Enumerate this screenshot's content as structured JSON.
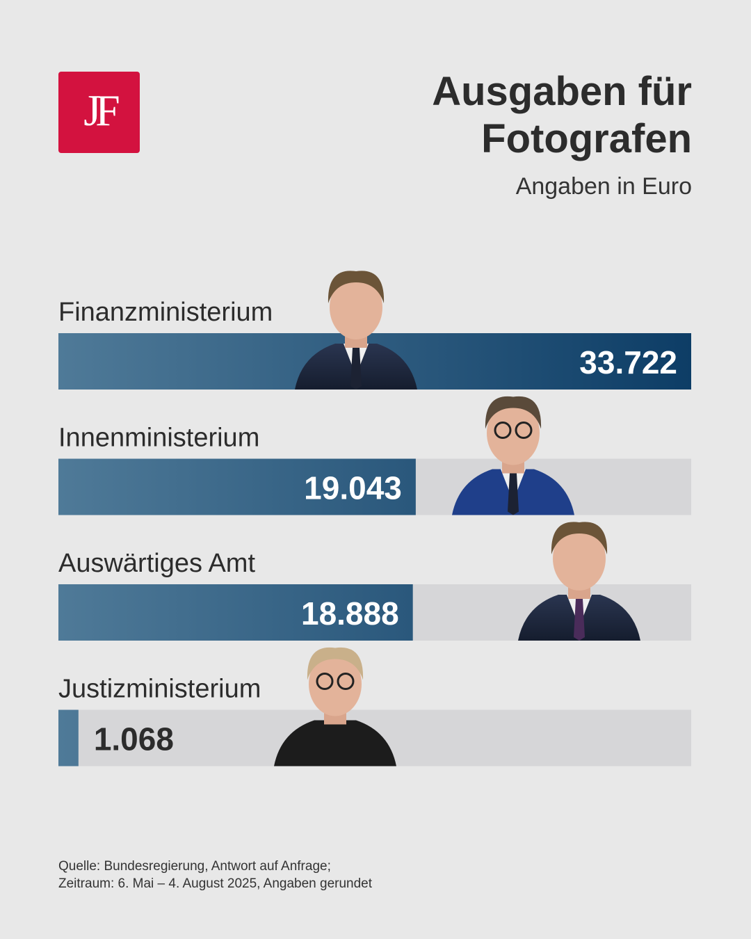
{
  "logo": {
    "text": "JF"
  },
  "header": {
    "title_line1": "Ausgaben für",
    "title_line2": "Fotografen",
    "subtitle": "Angaben in Euro"
  },
  "colors": {
    "background": "#e8e8e8",
    "track": "#d6d6d8",
    "bar_light": "#4f7a98",
    "bar_dark": "#0d3d66",
    "logo": "#d3123f",
    "text": "#2c2c2c"
  },
  "chart_data": {
    "type": "bar",
    "orientation": "horizontal",
    "categories": [
      "Finanzministerium",
      "Innenministerium",
      "Auswärtiges Amt",
      "Justizministerium"
    ],
    "values": [
      33722,
      19043,
      18888,
      1068
    ],
    "value_labels": [
      "33.722",
      "19.043",
      "18.888",
      "1.068"
    ],
    "xlim": [
      0,
      33722
    ],
    "grid": false,
    "legend": "none",
    "portraits": [
      "man-dark-suit-portrait",
      "man-glasses-blue-suit-portrait",
      "older-man-suit-portrait",
      "woman-glasses-black-blouse-portrait"
    ]
  },
  "footer": {
    "source_line1": "Quelle: Bundesregierung, Antwort auf Anfrage;",
    "source_line2": "Zeitraum: 6. Mai – 4. August 2025, Angaben gerundet"
  }
}
